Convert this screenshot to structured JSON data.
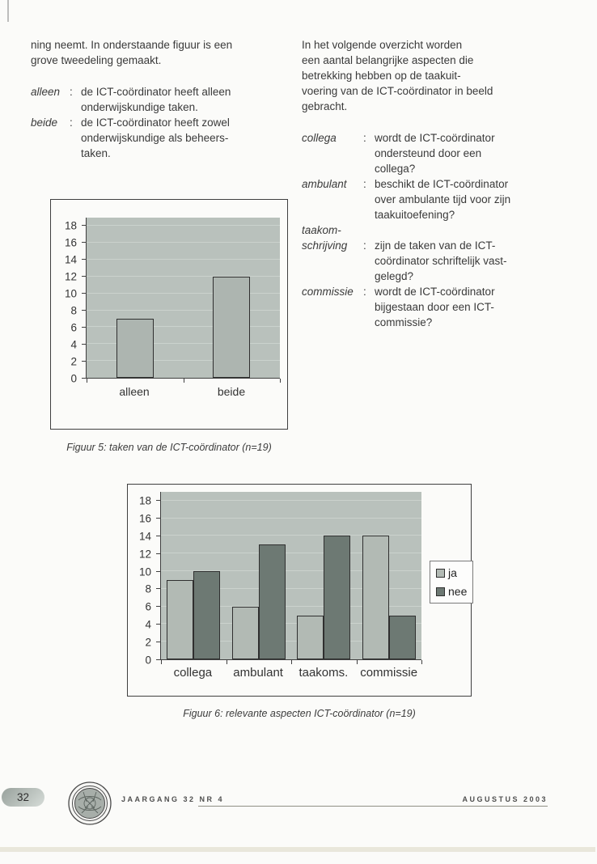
{
  "colors": {
    "page_bg": "#fbfbf9",
    "text": "#3a3a3a",
    "plot_bg": "#b9c1bc",
    "grid_line": "#cbd2cd",
    "bar_light": "#b2bab4",
    "bar_fig5": "#adb5b0",
    "bar_dark": "#6d7973",
    "bar_border": "#2f2f2f",
    "box_border": "#3f3f3f",
    "pill_from": "#98a19c",
    "pill_to": "#d6dcd8",
    "rule": "#8f8f85",
    "artifact": "#e9e7db"
  },
  "columns": {
    "left": {
      "intro": "ning neemt. In onderstaande figuur is een\ngrove tweedeling gemaakt.",
      "terms": [
        {
          "term": "alleen",
          "colon": ":",
          "def": "de ICT-coördinator heeft alleen\nonderwijskundige taken."
        },
        {
          "term": "beide",
          "colon": ":",
          "def": "de ICT-coördinator heeft zowel\nonderwijskundige als beheers-\ntaken."
        }
      ]
    },
    "right": {
      "intro": "In het volgende overzicht worden\neen aantal belangrijke aspecten die\nbetrekking hebben op de taakuit-\nvoering van de ICT-coördinator in beeld\ngebracht.",
      "terms": [
        {
          "term": "collega",
          "colon": ":",
          "def": "wordt de ICT-coördinator\nondersteund door een\ncollega?"
        },
        {
          "term": "ambulant",
          "colon": ":",
          "def": "beschikt de ICT-coördinator\nover ambulante tijd voor zijn\ntaakuitoefening?"
        },
        {
          "term": "taakom-",
          "colon": "",
          "def": ""
        },
        {
          "term": "schrijving",
          "colon": ":",
          "def": "zijn de taken van de ICT-\ncoördinator schriftelijk vast-\ngelegd?"
        },
        {
          "term": "commissie",
          "colon": ":",
          "def": "wordt de ICT-coördinator\nbijgestaan door een ICT-\ncommissie?"
        }
      ]
    }
  },
  "chart_data": [
    {
      "type": "bar",
      "title": "",
      "categories": [
        "alleen",
        "beide"
      ],
      "values": [
        7,
        12
      ],
      "ylim": [
        0,
        18
      ],
      "ytick_step": 2,
      "headroom": 1,
      "grid": true,
      "legend": null,
      "caption": "Figuur 5: taken van de ICT-coördinator (n=19)"
    },
    {
      "type": "bar",
      "title": "",
      "categories": [
        "collega",
        "ambulant",
        "taakoms.",
        "commissie"
      ],
      "series": [
        {
          "name": "ja",
          "values": [
            9,
            6,
            5,
            14
          ]
        },
        {
          "name": "nee",
          "values": [
            10,
            13,
            14,
            5
          ]
        }
      ],
      "ylim": [
        0,
        18
      ],
      "ytick_step": 2,
      "headroom": 1,
      "grid": true,
      "legend": "right",
      "caption": "Figuur 6: relevante aspecten ICT-coördinator (n=19)"
    }
  ],
  "footer": {
    "page_number": "32",
    "journal_line": "JAARGANG 32  NR 4",
    "date_line": "AUGUSTUS 2003"
  }
}
